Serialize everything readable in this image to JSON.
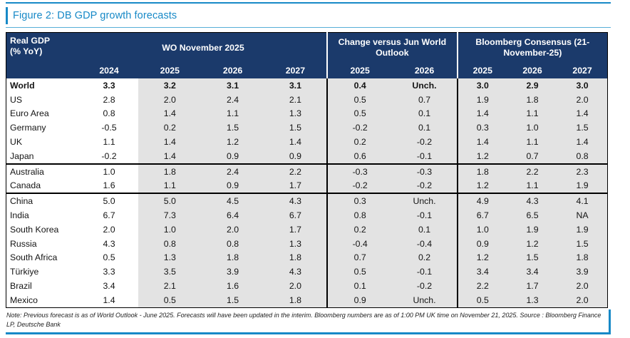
{
  "title": "Figure 2: DB GDP growth forecasts",
  "colors": {
    "accent_blue": "#1789c7",
    "header_navy": "#1b3a6b",
    "cell_gray": "#e3e3e3"
  },
  "table": {
    "corner_line1": "Real GDP",
    "corner_line2": "(% YoY)",
    "groups": [
      {
        "label": "WO November 2025",
        "years": [
          "2024",
          "2025",
          "2026",
          "2027"
        ]
      },
      {
        "label": "Change versus Jun World Outlook",
        "years": [
          "2025",
          "2026"
        ]
      },
      {
        "label": "Bloomberg Consensus (21-November-25)",
        "years": [
          "2025",
          "2026",
          "2027"
        ]
      }
    ],
    "rows": [
      {
        "label": "World",
        "bold": true,
        "group_end": false,
        "values": [
          "3.3",
          "3.2",
          "3.1",
          "3.1",
          "0.4",
          "Unch.",
          "3.0",
          "2.9",
          "3.0"
        ]
      },
      {
        "label": "US",
        "bold": false,
        "group_end": false,
        "values": [
          "2.8",
          "2.0",
          "2.4",
          "2.1",
          "0.5",
          "0.7",
          "1.9",
          "1.8",
          "2.0"
        ]
      },
      {
        "label": "Euro Area",
        "bold": false,
        "group_end": false,
        "values": [
          "0.8",
          "1.4",
          "1.1",
          "1.3",
          "0.5",
          "0.1",
          "1.4",
          "1.1",
          "1.4"
        ]
      },
      {
        "label": "Germany",
        "bold": false,
        "group_end": false,
        "values": [
          "-0.5",
          "0.2",
          "1.5",
          "1.5",
          "-0.2",
          "0.1",
          "0.3",
          "1.0",
          "1.5"
        ]
      },
      {
        "label": "UK",
        "bold": false,
        "group_end": false,
        "values": [
          "1.1",
          "1.4",
          "1.2",
          "1.4",
          "0.2",
          "-0.2",
          "1.4",
          "1.1",
          "1.4"
        ]
      },
      {
        "label": "Japan",
        "bold": false,
        "group_end": true,
        "values": [
          "-0.2",
          "1.4",
          "0.9",
          "0.9",
          "0.6",
          "-0.1",
          "1.2",
          "0.7",
          "0.8"
        ]
      },
      {
        "label": "Australia",
        "bold": false,
        "group_end": false,
        "values": [
          "1.0",
          "1.8",
          "2.4",
          "2.2",
          "-0.3",
          "-0.3",
          "1.8",
          "2.2",
          "2.3"
        ]
      },
      {
        "label": "Canada",
        "bold": false,
        "group_end": true,
        "values": [
          "1.6",
          "1.1",
          "0.9",
          "1.7",
          "-0.2",
          "-0.2",
          "1.2",
          "1.1",
          "1.9"
        ]
      },
      {
        "label": "China",
        "bold": false,
        "group_end": false,
        "values": [
          "5.0",
          "5.0",
          "4.5",
          "4.3",
          "0.3",
          "Unch.",
          "4.9",
          "4.3",
          "4.1"
        ]
      },
      {
        "label": "India",
        "bold": false,
        "group_end": false,
        "values": [
          "6.7",
          "7.3",
          "6.4",
          "6.7",
          "0.8",
          "-0.1",
          "6.7",
          "6.5",
          "NA"
        ]
      },
      {
        "label": "South Korea",
        "bold": false,
        "group_end": false,
        "values": [
          "2.0",
          "1.0",
          "2.0",
          "1.7",
          "0.2",
          "0.1",
          "1.0",
          "1.9",
          "1.9"
        ]
      },
      {
        "label": "Russia",
        "bold": false,
        "group_end": false,
        "values": [
          "4.3",
          "0.8",
          "0.8",
          "1.3",
          "-0.4",
          "-0.4",
          "0.9",
          "1.2",
          "1.5"
        ]
      },
      {
        "label": "South Africa",
        "bold": false,
        "group_end": false,
        "values": [
          "0.5",
          "1.3",
          "1.8",
          "1.8",
          "0.7",
          "0.2",
          "1.2",
          "1.5",
          "1.8"
        ]
      },
      {
        "label": "Türkiye",
        "bold": false,
        "group_end": false,
        "values": [
          "3.3",
          "3.5",
          "3.9",
          "4.3",
          "0.5",
          "-0.1",
          "3.4",
          "3.4",
          "3.9"
        ]
      },
      {
        "label": "Brazil",
        "bold": false,
        "group_end": false,
        "values": [
          "3.4",
          "2.1",
          "1.6",
          "2.0",
          "0.1",
          "-0.2",
          "2.2",
          "1.7",
          "2.0"
        ]
      },
      {
        "label": "Mexico",
        "bold": false,
        "group_end": false,
        "values": [
          "1.4",
          "0.5",
          "1.5",
          "1.8",
          "0.9",
          "Unch.",
          "0.5",
          "1.3",
          "2.0"
        ]
      }
    ]
  },
  "note": "Note: Previous forecast is as of World Outlook - June 2025. Forecasts will have been updated in the interim. Bloomberg numbers are as of 1:00 PM UK time on November 21, 2025. Source : Bloomberg Finance LP, Deutsche Bank"
}
